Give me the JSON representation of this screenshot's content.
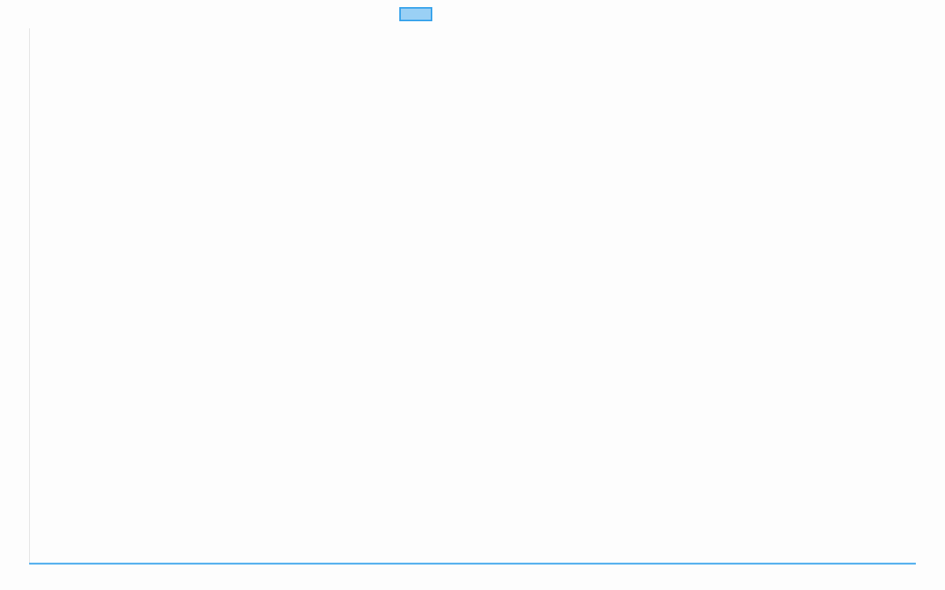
{
  "chart_data": {
    "type": "line",
    "title": "",
    "xlabel": "",
    "ylabel": "",
    "categories": [],
    "series": [
      {
        "values": [],
        "color": "#36a2eb",
        "fill": "#9ad0f5"
      }
    ],
    "grid": false,
    "legend": "top"
  }
}
